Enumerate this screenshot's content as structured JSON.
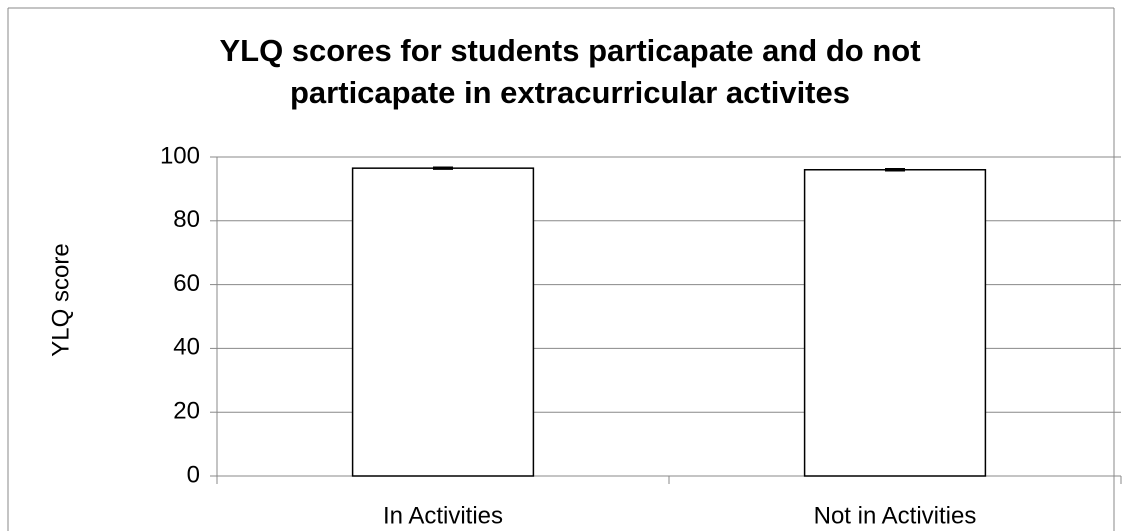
{
  "chart_data": {
    "type": "bar",
    "title": "YLQ scores for students particapate and do not particapate in extracurricular activites",
    "y_label": "YLQ score",
    "categories": [
      "In Activities",
      "Not in Activities"
    ],
    "values": [
      96.5,
      96.0
    ],
    "errors": [
      0.3,
      0.3
    ],
    "color": "#ffffff",
    "ylim": [
      0,
      100
    ],
    "yticks": [
      0,
      20,
      40,
      60,
      80,
      100
    ],
    "grid": true
  }
}
